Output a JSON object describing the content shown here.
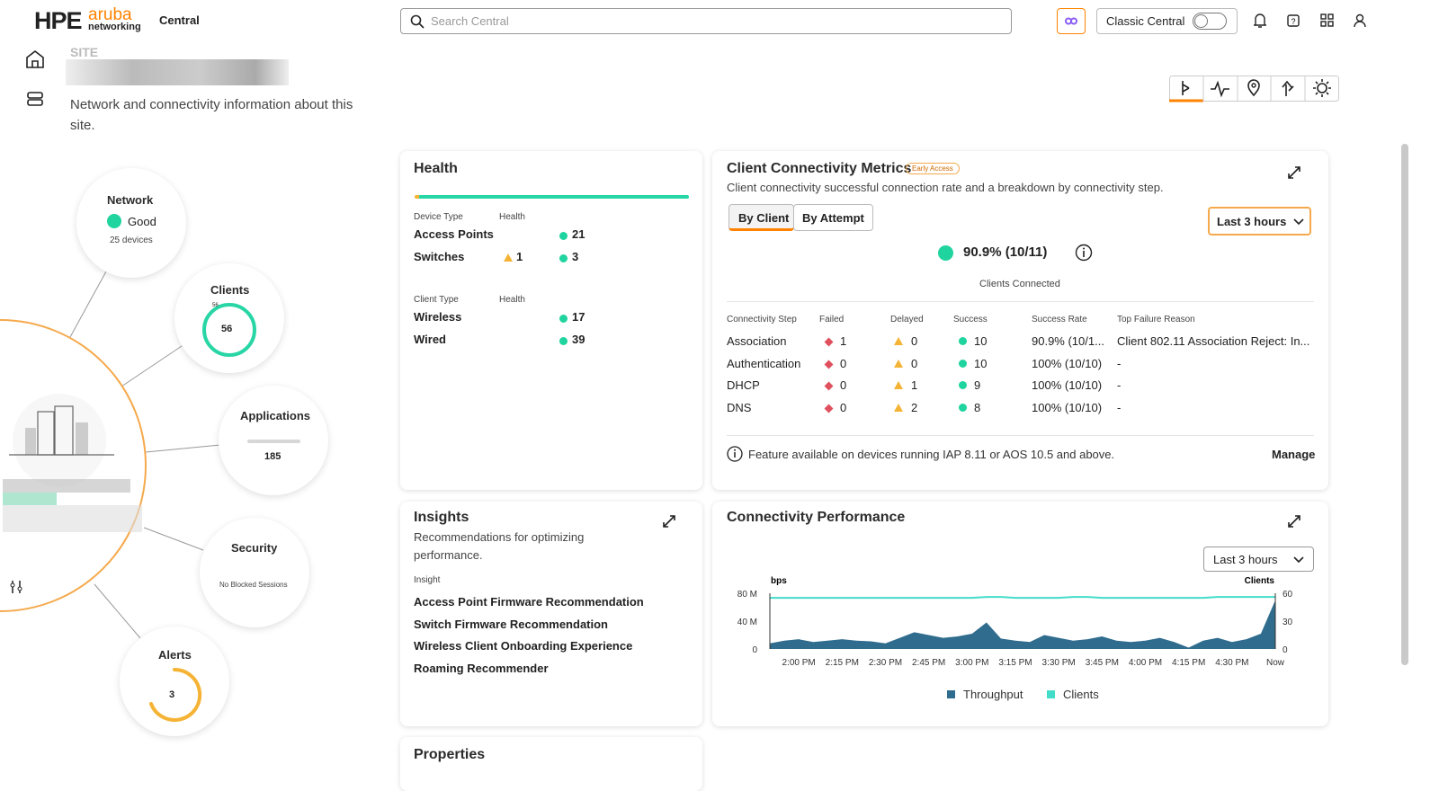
{
  "header": {
    "logo": "HPE",
    "brand": "aruba",
    "sub": "networking",
    "product": "Central",
    "search": "Search Central",
    "classic": "Classic Central"
  },
  "site": {
    "label": "SITE",
    "description": "Network and connectivity information about this site."
  },
  "summary": {
    "network": {
      "title": "Network",
      "status": "Good",
      "devices": "25 devices"
    },
    "clients": {
      "title": "Clients",
      "value": 56,
      "scale": 56
    },
    "applications": {
      "title": "Applications",
      "value": 185
    },
    "security": {
      "title": "Security",
      "status": "No Blocked Sessions"
    },
    "alerts": {
      "title": "Alerts",
      "value": 3
    }
  },
  "health": {
    "title": "Health",
    "device_headers": [
      "Device Type",
      "Health"
    ],
    "devices": [
      {
        "name": "Access Points",
        "warning": null,
        "ok": 21
      },
      {
        "name": "Switches",
        "warning": 1,
        "ok": 3
      }
    ],
    "client_headers": [
      "Client Type",
      "Health"
    ],
    "clients": [
      {
        "name": "Wireless",
        "warning": null,
        "ok": 17
      },
      {
        "name": "Wired",
        "warning": null,
        "ok": 39
      }
    ]
  },
  "client_connectivity": {
    "title": "Client Connectivity Metrics",
    "badge": "Early Access",
    "description": "Client connectivity successful connection rate and a breakdown by connectivity step.",
    "tabs": [
      "By Client",
      "By Attempt"
    ],
    "range": "Last 3 hours",
    "rate": "90.9% (10/11)",
    "rate_label": "Clients Connected",
    "columns": [
      "Connectivity Step",
      "Failed",
      "Delayed",
      "Success",
      "Success Rate",
      "Top Failure Reason"
    ],
    "rows": [
      [
        "Association",
        1,
        0,
        10,
        "90.9% (10/1...",
        "Client 802.11 Association Reject: In..."
      ],
      [
        "Authentication",
        0,
        0,
        10,
        "100% (10/10)",
        "-"
      ],
      [
        "DHCP",
        0,
        1,
        9,
        "100% (10/10)",
        "-"
      ],
      [
        "DNS",
        0,
        2,
        8,
        "100% (10/10)",
        "-"
      ]
    ],
    "note": "Feature available on devices running IAP 8.11 or AOS 10.5 and above.",
    "action": "Manage"
  },
  "insights": {
    "title": "Insights",
    "description": "Recommendations for optimizing performance.",
    "header": "Insight",
    "items": [
      "Access Point Firmware Recommendation",
      "Switch Firmware Recommendation",
      "Wireless Client Onboarding Experience",
      "Roaming Recommender"
    ]
  },
  "performance": {
    "type": "area",
    "title": "Connectivity Performance",
    "range": "Last 3 hours",
    "y_label": "bps",
    "y2_label": "Clients",
    "categories": [
      null,
      null,
      "2:00 PM",
      null,
      null,
      "2:15 PM",
      null,
      null,
      "2:30 PM",
      null,
      null,
      "2:45 PM",
      null,
      null,
      "3:00 PM",
      null,
      null,
      "3:15 PM",
      null,
      null,
      "3:30 PM",
      null,
      null,
      "3:45 PM",
      null,
      null,
      "4:00 PM",
      null,
      null,
      "4:15 PM",
      null,
      null,
      "4:30 PM",
      null,
      null,
      "Now"
    ],
    "series": [
      {
        "name": "Throughput",
        "color": "#2f6c8e",
        "values": [
          8,
          12,
          14,
          10,
          12,
          14,
          12,
          11,
          8,
          16,
          24,
          20,
          16,
          18,
          22,
          38,
          15,
          12,
          10,
          20,
          16,
          12,
          14,
          18,
          12,
          10,
          12,
          16,
          10,
          2,
          12,
          16,
          10,
          14,
          22,
          70
        ]
      },
      {
        "name": "Clients",
        "color": "#43dcc9",
        "axis": "y2",
        "values": [
          55,
          55,
          55,
          55,
          55,
          55,
          55,
          55,
          55,
          55,
          55,
          55,
          55,
          55,
          55,
          56,
          56,
          55,
          55,
          55,
          55,
          56,
          56,
          55,
          55,
          55,
          55,
          55,
          55,
          55,
          55,
          56,
          56,
          56,
          56,
          56
        ]
      }
    ],
    "ylim": [
      0,
      80
    ],
    "yticks": [
      0,
      {
        "value": 40,
        "label": "40 M"
      },
      {
        "value": 80,
        "label": "80 M"
      }
    ],
    "y2lim": [
      0,
      60
    ],
    "y2ticks": [
      0,
      30,
      60
    ]
  },
  "properties": {
    "title": "Properties"
  }
}
